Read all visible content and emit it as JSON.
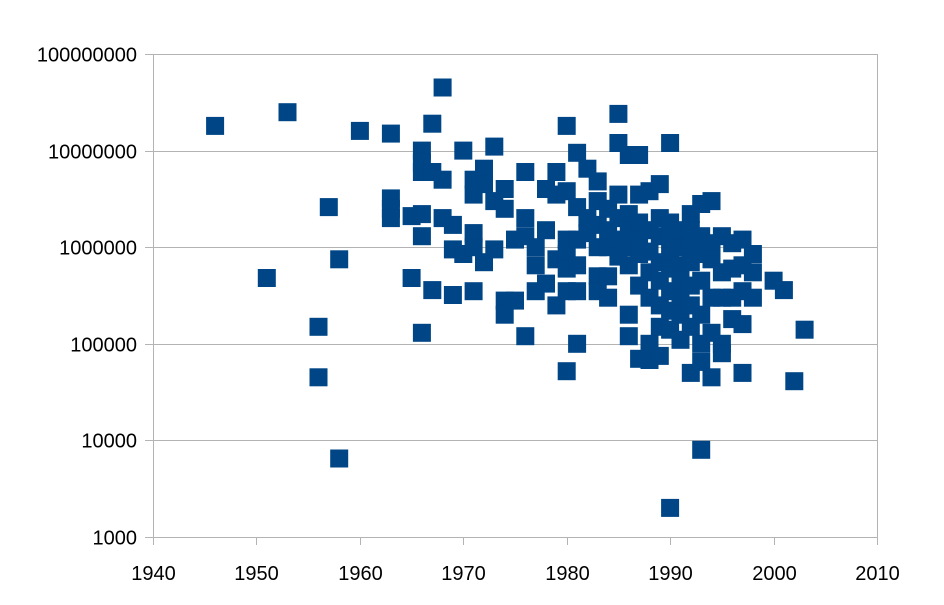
{
  "chart_data": {
    "type": "scatter",
    "title": "",
    "xlabel": "",
    "ylabel": "",
    "x_scale": "linear",
    "y_scale": "log",
    "xlim": [
      1940,
      2010
    ],
    "ylim": [
      1000,
      100000000
    ],
    "x_ticks": [
      1940,
      1950,
      1960,
      1970,
      1980,
      1990,
      2000,
      2010
    ],
    "x_tick_labels": [
      "1940",
      "1950",
      "1960",
      "1970",
      "1980",
      "1990",
      "2000",
      "2010"
    ],
    "y_ticks": [
      1000,
      10000,
      100000,
      1000000,
      10000000,
      100000000
    ],
    "y_tick_labels": [
      "1000",
      "10000",
      "100000",
      "1000000",
      "10000000",
      "100000000"
    ],
    "grid": "horizontal",
    "legend": "none",
    "marker": "square",
    "color": "#004586",
    "series": [
      {
        "points": [
          [
            1946,
            18000000
          ],
          [
            1951,
            480000
          ],
          [
            1953,
            25000000
          ],
          [
            1956,
            150000
          ],
          [
            1956,
            45000
          ],
          [
            1957,
            2600000
          ],
          [
            1958,
            750000
          ],
          [
            1958,
            6500
          ],
          [
            1960,
            16000000
          ],
          [
            1963,
            15000000
          ],
          [
            1963,
            3200000
          ],
          [
            1963,
            2500000
          ],
          [
            1963,
            2000000
          ],
          [
            1965,
            2100000
          ],
          [
            1965,
            480000
          ],
          [
            1966,
            10000000
          ],
          [
            1966,
            7500000
          ],
          [
            1966,
            6000000
          ],
          [
            1966,
            2200000
          ],
          [
            1966,
            1300000
          ],
          [
            1966,
            130000
          ],
          [
            1967,
            19000000
          ],
          [
            1967,
            6000000
          ],
          [
            1967,
            360000
          ],
          [
            1968,
            45000000
          ],
          [
            1968,
            5000000
          ],
          [
            1968,
            2000000
          ],
          [
            1969,
            1700000
          ],
          [
            1969,
            950000
          ],
          [
            1969,
            320000
          ],
          [
            1970,
            10000000
          ],
          [
            1970,
            850000
          ],
          [
            1971,
            5000000
          ],
          [
            1971,
            3500000
          ],
          [
            1971,
            1400000
          ],
          [
            1971,
            1000000
          ],
          [
            1971,
            350000
          ],
          [
            1972,
            6500000
          ],
          [
            1972,
            4500000
          ],
          [
            1972,
            700000
          ],
          [
            1973,
            11000000
          ],
          [
            1973,
            3000000
          ],
          [
            1973,
            950000
          ],
          [
            1974,
            4000000
          ],
          [
            1974,
            2500000
          ],
          [
            1974,
            280000
          ],
          [
            1974,
            200000
          ],
          [
            1975,
            1200000
          ],
          [
            1975,
            280000
          ],
          [
            1976,
            6000000
          ],
          [
            1976,
            2000000
          ],
          [
            1976,
            1300000
          ],
          [
            1976,
            120000
          ],
          [
            1977,
            1000000
          ],
          [
            1977,
            650000
          ],
          [
            1977,
            350000
          ],
          [
            1978,
            4000000
          ],
          [
            1978,
            1500000
          ],
          [
            1978,
            420000
          ],
          [
            1979,
            6000000
          ],
          [
            1979,
            3500000
          ],
          [
            1979,
            750000
          ],
          [
            1979,
            250000
          ],
          [
            1980,
            18000000
          ],
          [
            1980,
            3800000
          ],
          [
            1980,
            1200000
          ],
          [
            1980,
            850000
          ],
          [
            1980,
            600000
          ],
          [
            1980,
            350000
          ],
          [
            1980,
            52000
          ],
          [
            1981,
            9500000
          ],
          [
            1981,
            2600000
          ],
          [
            1981,
            1200000
          ],
          [
            1981,
            650000
          ],
          [
            1981,
            350000
          ],
          [
            1981,
            100000
          ],
          [
            1982,
            6500000
          ],
          [
            1982,
            2000000
          ],
          [
            1982,
            1400000
          ],
          [
            1983,
            4800000
          ],
          [
            1983,
            3000000
          ],
          [
            1983,
            1700000
          ],
          [
            1983,
            1000000
          ],
          [
            1983,
            500000
          ],
          [
            1983,
            350000
          ],
          [
            1984,
            2500000
          ],
          [
            1984,
            1500000
          ],
          [
            1984,
            1000000
          ],
          [
            1984,
            500000
          ],
          [
            1984,
            300000
          ],
          [
            1985,
            24000000
          ],
          [
            1985,
            12000000
          ],
          [
            1985,
            3500000
          ],
          [
            1985,
            2000000
          ],
          [
            1985,
            1200000
          ],
          [
            1985,
            800000
          ],
          [
            1986,
            9000000
          ],
          [
            1986,
            2200000
          ],
          [
            1986,
            1500000
          ],
          [
            1986,
            1000000
          ],
          [
            1986,
            650000
          ],
          [
            1986,
            200000
          ],
          [
            1986,
            120000
          ],
          [
            1987,
            9000000
          ],
          [
            1987,
            3500000
          ],
          [
            1987,
            1800000
          ],
          [
            1987,
            1200000
          ],
          [
            1987,
            850000
          ],
          [
            1987,
            400000
          ],
          [
            1987,
            70000
          ],
          [
            1988,
            3800000
          ],
          [
            1988,
            1500000
          ],
          [
            1988,
            900000
          ],
          [
            1988,
            550000
          ],
          [
            1988,
            300000
          ],
          [
            1988,
            100000
          ],
          [
            1988,
            68000
          ],
          [
            1989,
            4500000
          ],
          [
            1989,
            2000000
          ],
          [
            1989,
            1300000
          ],
          [
            1989,
            700000
          ],
          [
            1989,
            450000
          ],
          [
            1989,
            250000
          ],
          [
            1989,
            150000
          ],
          [
            1989,
            75000
          ],
          [
            1990,
            12000000
          ],
          [
            1990,
            1800000
          ],
          [
            1990,
            1200000
          ],
          [
            1990,
            800000
          ],
          [
            1990,
            600000
          ],
          [
            1990,
            350000
          ],
          [
            1990,
            220000
          ],
          [
            1990,
            140000
          ],
          [
            1990,
            2000
          ],
          [
            1991,
            1500000
          ],
          [
            1991,
            1000000
          ],
          [
            1991,
            650000
          ],
          [
            1991,
            450000
          ],
          [
            1991,
            300000
          ],
          [
            1991,
            200000
          ],
          [
            1991,
            110000
          ],
          [
            1992,
            2200000
          ],
          [
            1992,
            1500000
          ],
          [
            1992,
            1000000
          ],
          [
            1992,
            700000
          ],
          [
            1992,
            400000
          ],
          [
            1992,
            250000
          ],
          [
            1992,
            150000
          ],
          [
            1992,
            50000
          ],
          [
            1993,
            2800000
          ],
          [
            1993,
            1300000
          ],
          [
            1993,
            850000
          ],
          [
            1993,
            450000
          ],
          [
            1993,
            200000
          ],
          [
            1993,
            100000
          ],
          [
            1993,
            65000
          ],
          [
            1993,
            8000
          ],
          [
            1994,
            3000000
          ],
          [
            1994,
            1100000
          ],
          [
            1994,
            750000
          ],
          [
            1994,
            300000
          ],
          [
            1994,
            130000
          ],
          [
            1994,
            45000
          ],
          [
            1995,
            1300000
          ],
          [
            1995,
            550000
          ],
          [
            1995,
            300000
          ],
          [
            1995,
            100000
          ],
          [
            1995,
            80000
          ],
          [
            1996,
            1100000
          ],
          [
            1996,
            600000
          ],
          [
            1996,
            300000
          ],
          [
            1996,
            180000
          ],
          [
            1997,
            1200000
          ],
          [
            1997,
            650000
          ],
          [
            1997,
            350000
          ],
          [
            1997,
            160000
          ],
          [
            1997,
            50000
          ],
          [
            1998,
            850000
          ],
          [
            1998,
            550000
          ],
          [
            1998,
            300000
          ],
          [
            2000,
            450000
          ],
          [
            2001,
            360000
          ],
          [
            2002,
            41000
          ],
          [
            2003,
            140000
          ]
        ]
      }
    ]
  }
}
